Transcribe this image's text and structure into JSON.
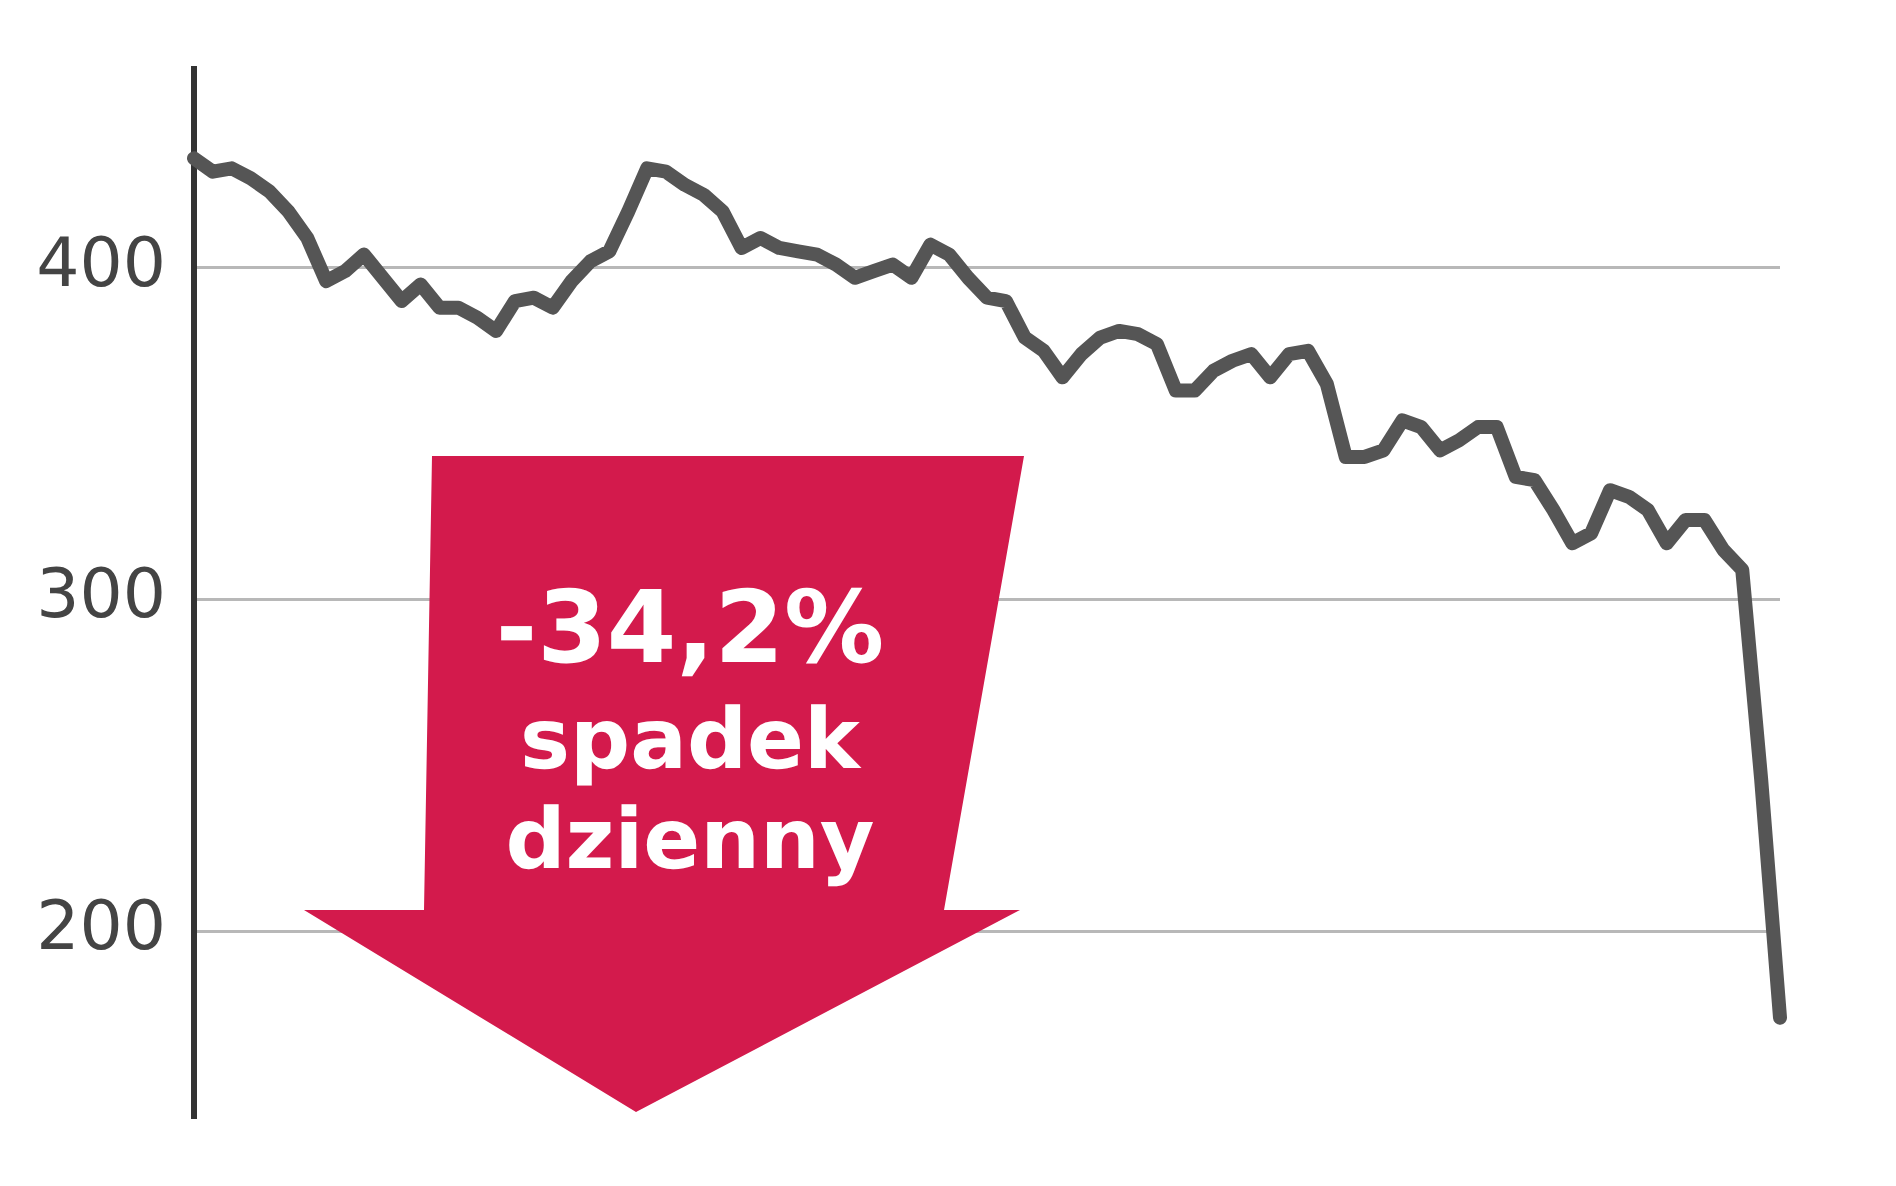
{
  "chart_data": {
    "type": "line",
    "categories": [
      null,
      null,
      null,
      null,
      null,
      null,
      null,
      null,
      null,
      null,
      null,
      null,
      null,
      null,
      null,
      null,
      null,
      null,
      null,
      null,
      null,
      null,
      null,
      null,
      null,
      null,
      null,
      null,
      null,
      null,
      null,
      null,
      null,
      null,
      null,
      null,
      null,
      null,
      null,
      null,
      null,
      null,
      null,
      null,
      null,
      null,
      null,
      null,
      null,
      null,
      null,
      null,
      null,
      null,
      null,
      null,
      null,
      null,
      null,
      null,
      null,
      null,
      null,
      null,
      null,
      null,
      null,
      null,
      null,
      null,
      null,
      null,
      null,
      null,
      null,
      null,
      null,
      null,
      null,
      null,
      null,
      null,
      null,
      null,
      null
    ],
    "series": [
      {
        "color": "#555555",
        "values": [
          433,
          429,
          430,
          427,
          423,
          417,
          409,
          396,
          399,
          404,
          397,
          390,
          395,
          388,
          388,
          385,
          381,
          390,
          391,
          388,
          396,
          402,
          405,
          417,
          430,
          429,
          425,
          422,
          417,
          406,
          409,
          406,
          405,
          404,
          401,
          397,
          399,
          401,
          397,
          407,
          404,
          397,
          391,
          390,
          379,
          375,
          367,
          374,
          379,
          381,
          380,
          377,
          363,
          363,
          369,
          372,
          374,
          367,
          374,
          375,
          365,
          343,
          343,
          345,
          354,
          352,
          345,
          348,
          352,
          352,
          337,
          336,
          327,
          317,
          320,
          333,
          331,
          327,
          317,
          324,
          324,
          315,
          309,
          246,
          174
        ]
      }
    ],
    "ylim": [
      144,
      460
    ],
    "yticks": [
      200,
      300,
      400
    ],
    "grid": "y",
    "tick_labels": "y",
    "marker": "none",
    "line_style": "solid",
    "annotations": [
      "-34,2%",
      "spadek dzienny"
    ]
  }
}
